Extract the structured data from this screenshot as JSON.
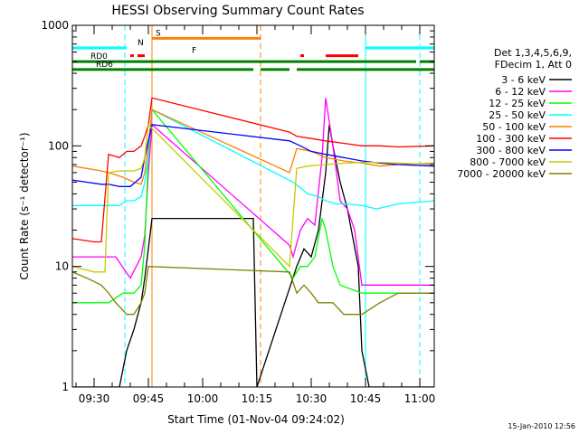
{
  "chart_data": {
    "type": "line",
    "title": "HESSI Observing Summary Count Rates",
    "xlabel": "Start Time (01-Nov-04 09:24:02)",
    "ylabel": "Count Rate (s⁻¹ detector⁻¹)",
    "x_unit": "minutes after 09:24:02",
    "x_ticks": [
      {
        "t": 6,
        "label": "09:30"
      },
      {
        "t": 21,
        "label": "09:45"
      },
      {
        "t": 36,
        "label": "10:00"
      },
      {
        "t": 51,
        "label": "10:15"
      },
      {
        "t": 66,
        "label": "10:30"
      },
      {
        "t": 81,
        "label": "10:45"
      },
      {
        "t": 96,
        "label": "11:00"
      }
    ],
    "y_scale": "log",
    "ylim": [
      1,
      1000
    ],
    "y_ticks": [
      {
        "v": 1,
        "label": "1"
      },
      {
        "v": 10,
        "label": "10"
      },
      {
        "v": 100,
        "label": "100"
      },
      {
        "v": 1000,
        "label": "1000"
      }
    ],
    "xlim": [
      0,
      100
    ],
    "legend": {
      "header": [
        "Det 1,3,4,5,6,9,",
        "FDecim 1, Att 0"
      ],
      "placement": "right"
    },
    "series": [
      {
        "name": "3 - 6 keV",
        "color": "#000000",
        "points": [
          [
            0,
            1
          ],
          [
            13,
            1
          ],
          [
            15,
            2
          ],
          [
            17,
            3
          ],
          [
            19,
            5
          ],
          [
            20,
            8
          ],
          [
            21,
            14
          ],
          [
            22,
            25
          ],
          [
            50,
            25
          ],
          [
            51,
            1
          ],
          [
            62,
            10
          ],
          [
            64,
            14
          ],
          [
            66,
            12
          ],
          [
            68,
            20
          ],
          [
            70,
            60
          ],
          [
            71,
            150
          ],
          [
            72,
            100
          ],
          [
            74,
            50
          ],
          [
            76,
            30
          ],
          [
            79,
            10
          ],
          [
            80,
            2
          ],
          [
            82,
            1
          ],
          [
            100,
            1
          ]
        ]
      },
      {
        "name": "6 - 12 keV",
        "color": "#ff00ff",
        "points": [
          [
            0,
            12
          ],
          [
            12,
            12
          ],
          [
            16,
            8
          ],
          [
            19,
            12
          ],
          [
            20,
            18
          ],
          [
            21,
            60
          ],
          [
            22,
            150
          ],
          [
            60,
            15
          ],
          [
            61,
            12
          ],
          [
            63,
            20
          ],
          [
            65,
            25
          ],
          [
            67,
            22
          ],
          [
            69,
            80
          ],
          [
            70,
            250
          ],
          [
            72,
            100
          ],
          [
            74,
            35
          ],
          [
            76,
            30
          ],
          [
            78,
            20
          ],
          [
            80,
            7
          ],
          [
            90,
            7
          ],
          [
            100,
            7
          ]
        ]
      },
      {
        "name": "12 - 25 keV",
        "color": "#00ff00",
        "points": [
          [
            0,
            5
          ],
          [
            10,
            5
          ],
          [
            14,
            6
          ],
          [
            17,
            6
          ],
          [
            19,
            7
          ],
          [
            20,
            15
          ],
          [
            21,
            80
          ],
          [
            22,
            200
          ],
          [
            61,
            8
          ],
          [
            63,
            10
          ],
          [
            65,
            10
          ],
          [
            67,
            12
          ],
          [
            69,
            25
          ],
          [
            70,
            20
          ],
          [
            72,
            10
          ],
          [
            74,
            7
          ],
          [
            80,
            6
          ],
          [
            90,
            6
          ],
          [
            100,
            6
          ]
        ]
      },
      {
        "name": "25 - 50 keV",
        "color": "#00ffff",
        "points": [
          [
            0,
            32
          ],
          [
            10,
            32
          ],
          [
            13,
            32
          ],
          [
            15,
            35
          ],
          [
            17,
            35
          ],
          [
            19,
            38
          ],
          [
            20,
            50
          ],
          [
            21,
            80
          ],
          [
            22,
            200
          ],
          [
            61,
            50
          ],
          [
            63,
            45
          ],
          [
            65,
            40
          ],
          [
            68,
            38
          ],
          [
            70,
            35
          ],
          [
            73,
            33
          ],
          [
            76,
            33
          ],
          [
            80,
            32
          ],
          [
            84,
            30
          ],
          [
            90,
            33
          ],
          [
            100,
            35
          ]
        ]
      },
      {
        "name": "50 - 100 keV",
        "color": "#ff8000",
        "points": [
          [
            0,
            68
          ],
          [
            4,
            65
          ],
          [
            8,
            62
          ],
          [
            10,
            60
          ],
          [
            14,
            55
          ],
          [
            17,
            50
          ],
          [
            19,
            48
          ],
          [
            20,
            60
          ],
          [
            21,
            100
          ],
          [
            22,
            200
          ],
          [
            60,
            60
          ],
          [
            62,
            95
          ],
          [
            66,
            90
          ],
          [
            70,
            80
          ],
          [
            75,
            75
          ],
          [
            80,
            72
          ],
          [
            85,
            68
          ],
          [
            90,
            70
          ],
          [
            100,
            72
          ]
        ]
      },
      {
        "name": "100 - 300 keV",
        "color": "#ff0000",
        "points": [
          [
            0,
            17
          ],
          [
            6,
            16
          ],
          [
            8,
            16
          ],
          [
            10,
            85
          ],
          [
            13,
            80
          ],
          [
            15,
            90
          ],
          [
            17,
            90
          ],
          [
            19,
            100
          ],
          [
            20,
            120
          ],
          [
            21,
            150
          ],
          [
            22,
            250
          ],
          [
            60,
            130
          ],
          [
            62,
            120
          ],
          [
            66,
            115
          ],
          [
            70,
            110
          ],
          [
            75,
            105
          ],
          [
            80,
            100
          ],
          [
            85,
            100
          ],
          [
            90,
            98
          ],
          [
            100,
            100
          ]
        ]
      },
      {
        "name": "300 - 800 keV",
        "color": "#0000ff",
        "points": [
          [
            0,
            52
          ],
          [
            4,
            50
          ],
          [
            8,
            48
          ],
          [
            10,
            48
          ],
          [
            13,
            46
          ],
          [
            16,
            46
          ],
          [
            19,
            55
          ],
          [
            20,
            80
          ],
          [
            22,
            150
          ],
          [
            60,
            110
          ],
          [
            63,
            100
          ],
          [
            66,
            90
          ],
          [
            70,
            85
          ],
          [
            75,
            80
          ],
          [
            80,
            75
          ],
          [
            85,
            72
          ],
          [
            90,
            70
          ],
          [
            100,
            68
          ]
        ]
      },
      {
        "name": "800 - 7000 keV",
        "color": "#c8c800",
        "points": [
          [
            0,
            10
          ],
          [
            6,
            9
          ],
          [
            9,
            9
          ],
          [
            10,
            60
          ],
          [
            13,
            62
          ],
          [
            15,
            62
          ],
          [
            17,
            62
          ],
          [
            19,
            65
          ],
          [
            20,
            80
          ],
          [
            21,
            150
          ],
          [
            60,
            10
          ],
          [
            62,
            65
          ],
          [
            65,
            68
          ],
          [
            70,
            70
          ],
          [
            75,
            72
          ],
          [
            80,
            73
          ],
          [
            85,
            73
          ],
          [
            90,
            72
          ],
          [
            100,
            70
          ]
        ]
      },
      {
        "name": "7000 - 20000 keV",
        "color": "#808000",
        "points": [
          [
            0,
            9
          ],
          [
            4,
            8
          ],
          [
            8,
            7
          ],
          [
            10,
            6
          ],
          [
            12,
            5
          ],
          [
            15,
            4
          ],
          [
            17,
            4
          ],
          [
            19,
            5
          ],
          [
            20,
            6
          ],
          [
            21,
            10
          ],
          [
            60,
            9
          ],
          [
            62,
            6
          ],
          [
            64,
            7
          ],
          [
            66,
            6
          ],
          [
            68,
            5
          ],
          [
            70,
            5
          ],
          [
            72,
            5
          ],
          [
            75,
            4
          ],
          [
            80,
            4
          ],
          [
            85,
            5
          ],
          [
            90,
            6
          ],
          [
            100,
            6
          ]
        ]
      }
    ],
    "state_bars": [
      {
        "label": "RD0",
        "color": "#008000",
        "level": 500,
        "segments": [
          [
            0,
            95
          ],
          [
            96,
            100
          ]
        ]
      },
      {
        "label": "RD6",
        "color": "#008000",
        "level": 430,
        "segments": [
          [
            0,
            50
          ],
          [
            52,
            60
          ],
          [
            62,
            100
          ]
        ]
      },
      {
        "label": "N",
        "color": "#00ffff",
        "level": 650,
        "segments": [
          [
            0,
            15
          ],
          [
            81,
            100
          ]
        ]
      },
      {
        "label": "S",
        "color": "#ff8000",
        "level": 780,
        "segments": [
          [
            22,
            52
          ]
        ]
      },
      {
        "label": "F",
        "color": "#ff0000",
        "level": 560,
        "segments": [
          [
            16,
            17
          ],
          [
            18,
            20
          ],
          [
            63,
            64
          ],
          [
            70,
            79
          ]
        ]
      }
    ],
    "vertical_markers": [
      {
        "t": 14.5,
        "color": "#00ffff",
        "style": "dashed"
      },
      {
        "t": 22,
        "color": "#ff8000",
        "style": "solid"
      },
      {
        "t": 52,
        "color": "#ff8000",
        "style": "dashed"
      },
      {
        "t": 81,
        "color": "#00ffff",
        "style": "solid"
      },
      {
        "t": 96,
        "color": "#00ffff",
        "style": "dashed"
      }
    ],
    "footer_date": "15-Jan-2010 12:56"
  }
}
